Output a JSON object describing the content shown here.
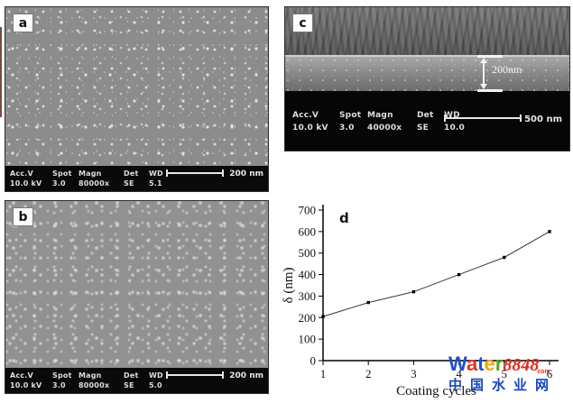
{
  "panels": {
    "a": {
      "label": "a",
      "meta": [
        {
          "h": "Acc.V",
          "v": "10.0 kV"
        },
        {
          "h": "Spot",
          "v": "3.0"
        },
        {
          "h": "Magn",
          "v": "80000x"
        },
        {
          "h": "Det",
          "v": "SE"
        },
        {
          "h": "WD",
          "v": "5.1"
        }
      ],
      "scale": "200 nm"
    },
    "b": {
      "label": "b",
      "meta": [
        {
          "h": "Acc.V",
          "v": "10.0 kV"
        },
        {
          "h": "Spot",
          "v": "3.0"
        },
        {
          "h": "Magn",
          "v": "80000x"
        },
        {
          "h": "Det",
          "v": "SE"
        },
        {
          "h": "WD",
          "v": "5.0"
        }
      ],
      "scale": "200 nm"
    },
    "c": {
      "label": "c",
      "meta": [
        {
          "h": "Acc.V",
          "v": "10.0 kV"
        },
        {
          "h": "Spot",
          "v": "3.0"
        },
        {
          "h": "Magn",
          "v": "40000x"
        },
        {
          "h": "Det",
          "v": "SE"
        },
        {
          "h": "WD",
          "v": "10.0"
        }
      ],
      "scale": "500 nm",
      "annotation": "200nm"
    }
  },
  "chart_data": {
    "type": "line",
    "panel_label": "d",
    "x": [
      1,
      2,
      3,
      4,
      5,
      6
    ],
    "y": [
      205,
      270,
      320,
      400,
      480,
      600
    ],
    "xlabel": "Coating cycles",
    "ylabel": "δ (nm)",
    "xlim": [
      1,
      6
    ],
    "ylim": [
      0,
      700
    ],
    "xticks": [
      1,
      2,
      3,
      4,
      5,
      6
    ],
    "yticks": [
      0,
      100,
      200,
      300,
      400,
      500,
      600,
      700
    ],
    "marker": "square",
    "grid": false,
    "line_color": "#3a3a3a",
    "marker_color": "#000000"
  },
  "watermark": {
    "letters": [
      {
        "char": "W",
        "color": "#1f52c8"
      },
      {
        "char": "a",
        "color": "#e03522"
      },
      {
        "char": "t",
        "color": "#1f52c8"
      },
      {
        "char": "e",
        "color": "#f2a50c"
      },
      {
        "char": "r",
        "color": "#57a522"
      }
    ],
    "number": "8848",
    "number_color": "#e02a1e",
    "suffix": "com",
    "suffix_color": "#e02a1e",
    "chinese": "中国水业网",
    "chinese_color": "#1746c2"
  }
}
